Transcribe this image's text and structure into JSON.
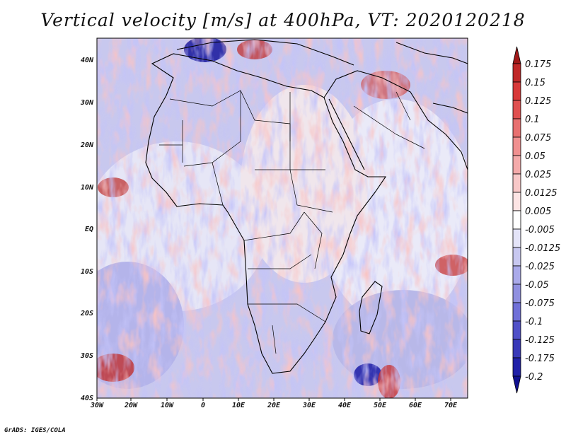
{
  "title": "Vertical velocity [m/s] at 400hPa, VT: 2020120218",
  "footer": "GrADS: IGES/COLA",
  "map": {
    "lon_labels": [
      "30W",
      "20W",
      "10W",
      "0",
      "10E",
      "20E",
      "30E",
      "40E",
      "50E",
      "60E",
      "70E"
    ],
    "lat_labels": [
      "40N",
      "30N",
      "20N",
      "10N",
      "EQ",
      "10S",
      "20S",
      "30S",
      "40S"
    ]
  },
  "colorbar": {
    "levels": [
      "0.175",
      "0.15",
      "0.125",
      "0.1",
      "0.075",
      "0.05",
      "0.025",
      "0.0125",
      "0.005",
      "-0.005",
      "-0.0125",
      "-0.025",
      "-0.05",
      "-0.075",
      "-0.1",
      "-0.125",
      "-0.175",
      "-0.2"
    ],
    "colors": [
      "#a01818",
      "#c02828",
      "#d83838",
      "#e05050",
      "#e87070",
      "#f09090",
      "#f4aaaa",
      "#f8c8c8",
      "#fce4e4",
      "#ffffff",
      "#e4e4f8",
      "#c8c8f0",
      "#aaaaea",
      "#9090e0",
      "#7070d8",
      "#5050c8",
      "#3838b8",
      "#2020a8",
      "#101090"
    ]
  }
}
